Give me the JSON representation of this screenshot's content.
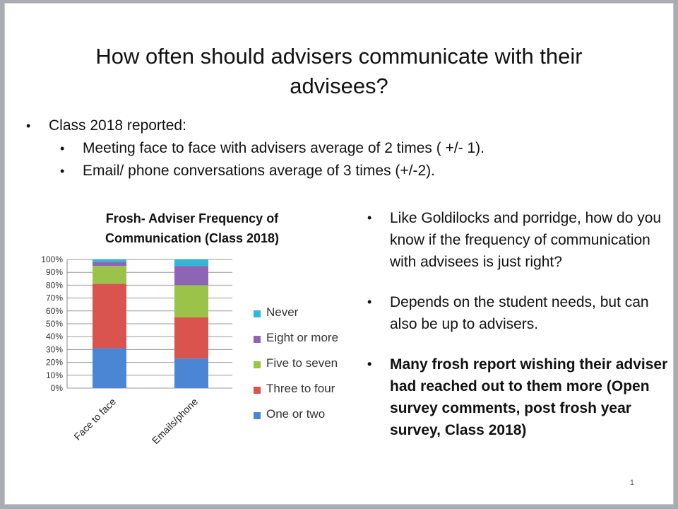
{
  "slide": {
    "title": "How often should advisers communicate with their advisees?",
    "bullet_main": "Class 2018 reported:",
    "sub_bullets": [
      "Meeting face to face with advisers average of 2 times ( +/- 1).",
      "Email/ phone conversations average of 3 times (+/-2)."
    ],
    "right_bullets": [
      "Like Goldilocks and porridge, how do you know if the frequency of communication with advisees is just right?",
      "Depends on the student needs, but can also be up to advisers.",
      "Many frosh report wishing their adviser had reached out to them more (Open survey comments, post frosh year survey, Class 2018)"
    ],
    "page_number": "1"
  },
  "chart_data": {
    "type": "bar",
    "stacked": true,
    "percent_scale": true,
    "title": "Frosh- Adviser Frequency of Communication (Class 2018)",
    "categories": [
      "Face to face",
      "Emails/phone"
    ],
    "y_ticks": [
      "0%",
      "10%",
      "20%",
      "30%",
      "40%",
      "50%",
      "60%",
      "70%",
      "80%",
      "90%",
      "100%"
    ],
    "ylim": [
      0,
      100
    ],
    "grid": true,
    "legend_position": "right",
    "series": [
      {
        "name": "One or two",
        "color": "#4a86d4",
        "values": [
          31,
          23
        ]
      },
      {
        "name": "Three to four",
        "color": "#d9534f",
        "values": [
          50,
          32
        ]
      },
      {
        "name": "Five to seven",
        "color": "#9bc34a",
        "values": [
          14,
          25
        ]
      },
      {
        "name": "Eight or more",
        "color": "#8e64b6",
        "values": [
          3,
          15
        ]
      },
      {
        "name": "Never",
        "color": "#31b7d6",
        "values": [
          2,
          5
        ]
      }
    ]
  }
}
